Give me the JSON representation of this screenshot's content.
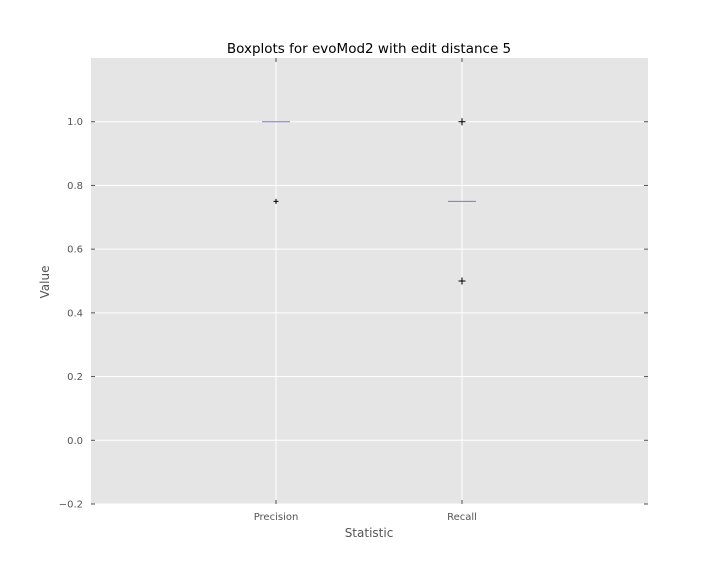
{
  "chart_data": {
    "type": "boxplot",
    "title": "Boxplots for evoMod2 with edit distance 5",
    "xlabel": "Statistic",
    "ylabel": "Value",
    "categories": [
      "Precision",
      "Recall"
    ],
    "ylim": [
      -0.2,
      1.2
    ],
    "yticks": [
      -0.2,
      0.0,
      0.2,
      0.4,
      0.6,
      0.8,
      1.0
    ],
    "ytick_labels": [
      "−0.2",
      "0.0",
      "0.2",
      "0.4",
      "0.6",
      "0.8",
      "1.0"
    ],
    "grid": true,
    "legend": "none",
    "boxes": [
      {
        "category": "Precision",
        "median": 1.0,
        "q1": 1.0,
        "q3": 1.0,
        "whisker_low": 1.0,
        "whisker_high": 1.0,
        "outliers": [
          0.75
        ]
      },
      {
        "category": "Recall",
        "median": 0.75,
        "q1": 0.75,
        "q3": 0.75,
        "whisker_low": 0.75,
        "whisker_high": 0.75,
        "outliers": [
          1.0,
          0.5
        ]
      }
    ],
    "colors": {
      "plot_background": "#e5e5e5",
      "grid": "#ffffff",
      "median": "#7777dd",
      "outlier": "#000000"
    }
  }
}
